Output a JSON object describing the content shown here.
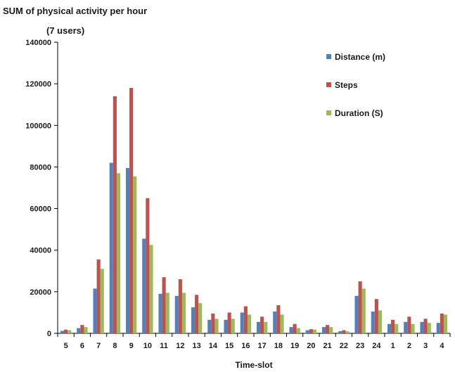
{
  "chart_data": {
    "type": "bar",
    "title": "SUM of physical activity per hour",
    "subtitle": "(7 users)",
    "xlabel": "Time-slot",
    "ylabel": "",
    "ylim": [
      0,
      140000
    ],
    "yticks": [
      0,
      20000,
      40000,
      60000,
      80000,
      100000,
      120000,
      140000
    ],
    "grid": false,
    "legend_position": "top-right",
    "categories": [
      "5",
      "6",
      "7",
      "8",
      "9",
      "10",
      "11",
      "12",
      "13",
      "14",
      "15",
      "16",
      "17",
      "18",
      "19",
      "20",
      "21",
      "22",
      "23",
      "24",
      "1",
      "2",
      "3",
      "4"
    ],
    "series": [
      {
        "name": "Distance (m)",
        "color": "#4f81bd",
        "values": [
          1200,
          2500,
          21500,
          82000,
          79500,
          45500,
          19000,
          18000,
          12500,
          6500,
          6500,
          10000,
          5500,
          10500,
          3000,
          1500,
          3000,
          1000,
          18000,
          10500,
          4500,
          5500,
          5500,
          5000
        ]
      },
      {
        "name": "Steps",
        "color": "#c0504d",
        "values": [
          1800,
          4000,
          35500,
          114000,
          118000,
          65000,
          27000,
          26000,
          18500,
          9500,
          10000,
          13000,
          8000,
          13500,
          4500,
          2000,
          4000,
          1500,
          25000,
          16500,
          6500,
          8000,
          7000,
          9500
        ]
      },
      {
        "name": "Duration (S)",
        "color": "#9bbb59",
        "values": [
          1500,
          3000,
          31000,
          77000,
          75500,
          42500,
          19500,
          19500,
          14500,
          7000,
          7000,
          9000,
          5500,
          9000,
          2500,
          1800,
          3000,
          1000,
          21500,
          11000,
          4500,
          4500,
          5000,
          9000
        ]
      }
    ]
  }
}
